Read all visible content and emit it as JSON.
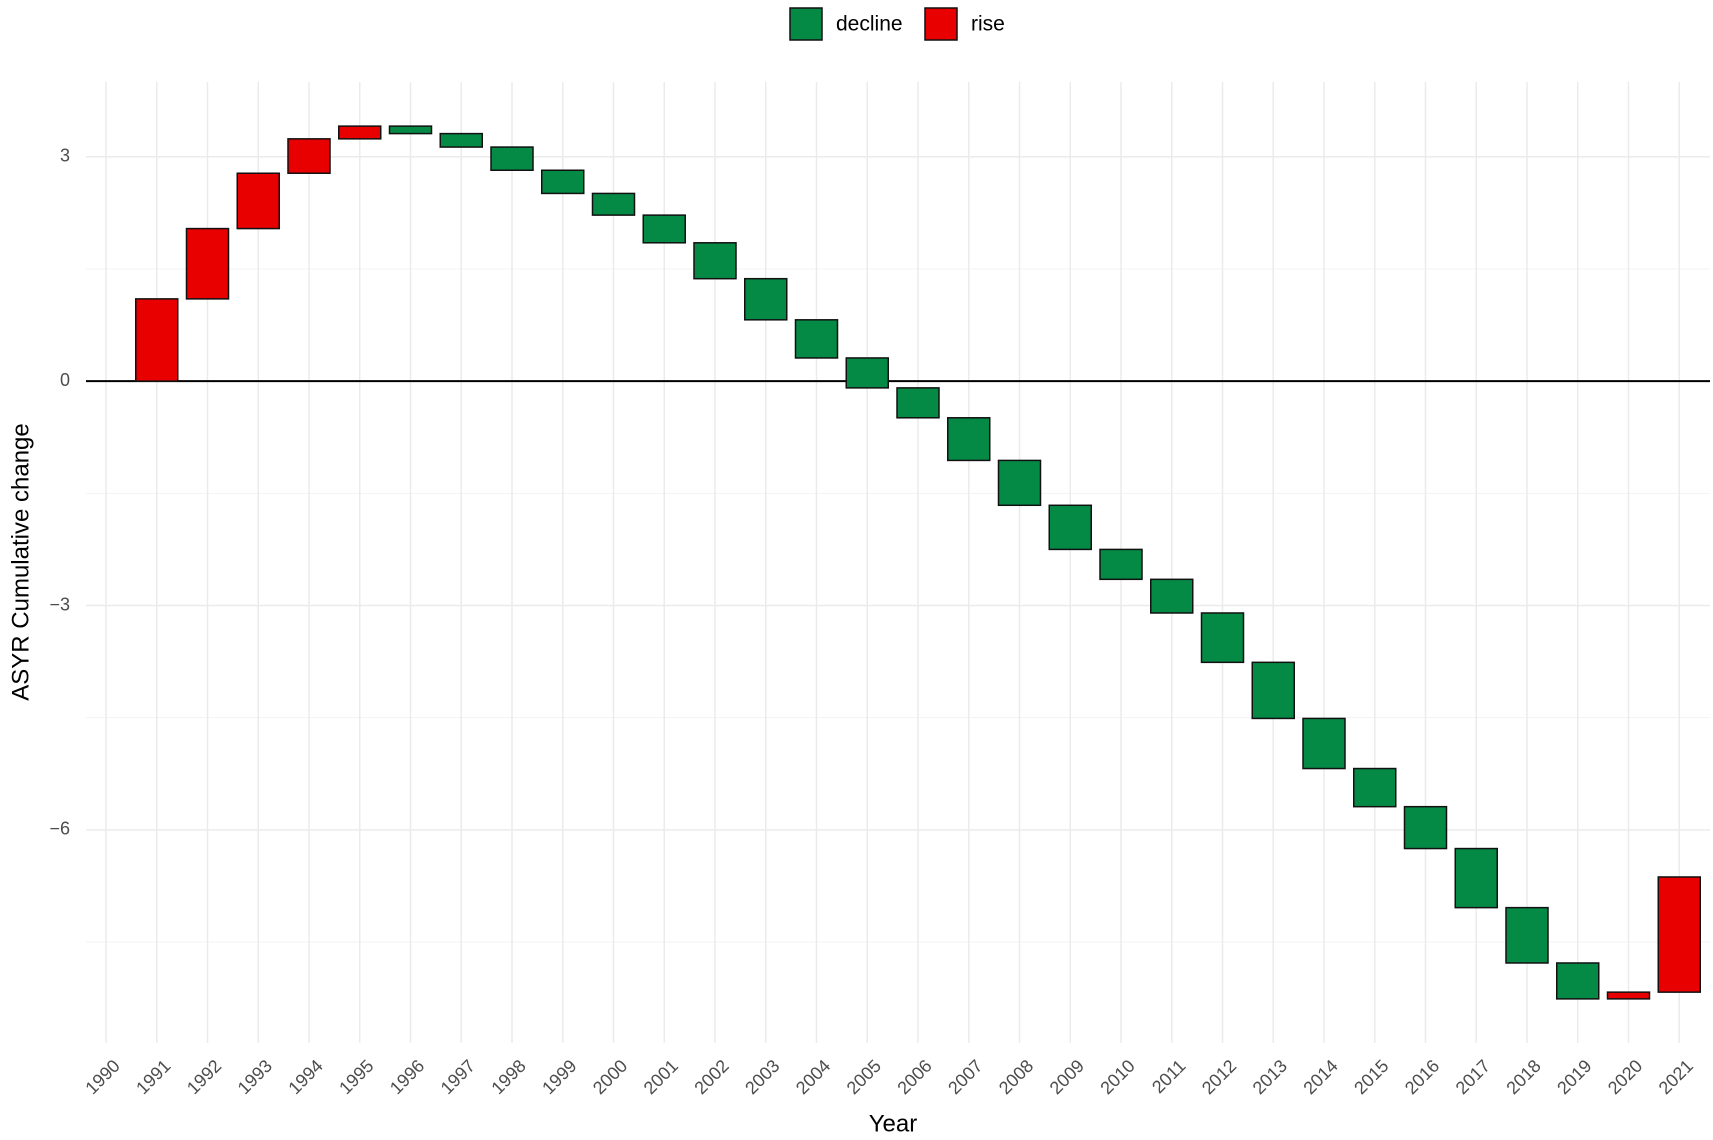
{
  "chart_data": {
    "type": "waterfall",
    "x_label": "Year",
    "y_label": "ASYR Cumulative change",
    "categories": [
      "1990",
      "1991",
      "1992",
      "1993",
      "1994",
      "1995",
      "1996",
      "1997",
      "1998",
      "1999",
      "2000",
      "2001",
      "2002",
      "2003",
      "2004",
      "2005",
      "2006",
      "2007",
      "2008",
      "2009",
      "2010",
      "2011",
      "2012",
      "2013",
      "2014",
      "2015",
      "2016",
      "2017",
      "2018",
      "2019",
      "2020",
      "2021"
    ],
    "values": [
      null,
      1.1,
      0.94,
      0.74,
      0.46,
      0.17,
      -0.1,
      -0.18,
      -0.31,
      -0.31,
      -0.29,
      -0.37,
      -0.48,
      -0.55,
      -0.51,
      -0.4,
      -0.4,
      -0.57,
      -0.6,
      -0.59,
      -0.4,
      -0.45,
      -0.66,
      -0.75,
      -0.67,
      -0.51,
      -0.56,
      -0.79,
      -0.74,
      -0.48,
      0.09,
      1.54
    ],
    "legend": [
      {
        "name": "decline",
        "color": "#058a46"
      },
      {
        "name": "rise",
        "color": "#e80000"
      }
    ],
    "ylim": [
      -8.85,
      4.0
    ],
    "yticks": [
      {
        "value": -6,
        "label": "−6"
      },
      {
        "value": -3,
        "label": "−3"
      },
      0,
      3
    ],
    "minor_yticks": [
      -7.5,
      -4.5,
      -1.5,
      1.5
    ],
    "grid": true
  }
}
